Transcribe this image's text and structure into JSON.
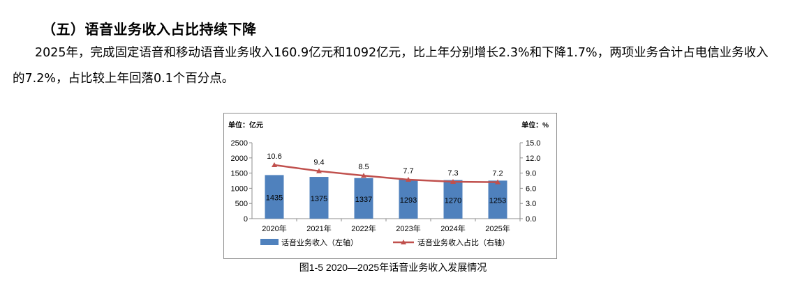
{
  "section": {
    "heading": "（五）语音业务收入占比持续下降",
    "paragraph": "2025年，完成固定语音和移动语音业务收入160.9亿元和1092亿元，比上年分别增长2.3%和下降1.7%，两项业务合计占电信业务收入的7.2%，占比较上年回落0.1个百分点。"
  },
  "chart_data": {
    "type": "bar",
    "caption": "图1-5  2020—2025年话音业务收入发展情况",
    "left_unit_label": "单位：亿元",
    "right_unit_label": "单位：%",
    "categories": [
      "2020年",
      "2021年",
      "2022年",
      "2023年",
      "2024年",
      "2025年"
    ],
    "series": [
      {
        "name": "话音业务收入（左轴）",
        "type": "bar",
        "axis": "left",
        "values": [
          1435,
          1375,
          1337,
          1293,
          1270,
          1253
        ],
        "color": "#4f81bd"
      },
      {
        "name": "话音业务收入占比（右轴）",
        "type": "line",
        "axis": "right",
        "values": [
          10.6,
          9.4,
          8.5,
          7.7,
          7.3,
          7.2
        ],
        "color": "#c0504d"
      }
    ],
    "left_axis": {
      "ylim": [
        0,
        2500
      ],
      "ticks": [
        "0",
        "500",
        "1000",
        "1500",
        "2000",
        "2500"
      ]
    },
    "right_axis": {
      "ylim": [
        0,
        15
      ],
      "ticks": [
        "0.0",
        "3.0",
        "6.0",
        "9.0",
        "12.0",
        "15.0"
      ]
    },
    "legend_position": "bottom",
    "grid": false
  }
}
